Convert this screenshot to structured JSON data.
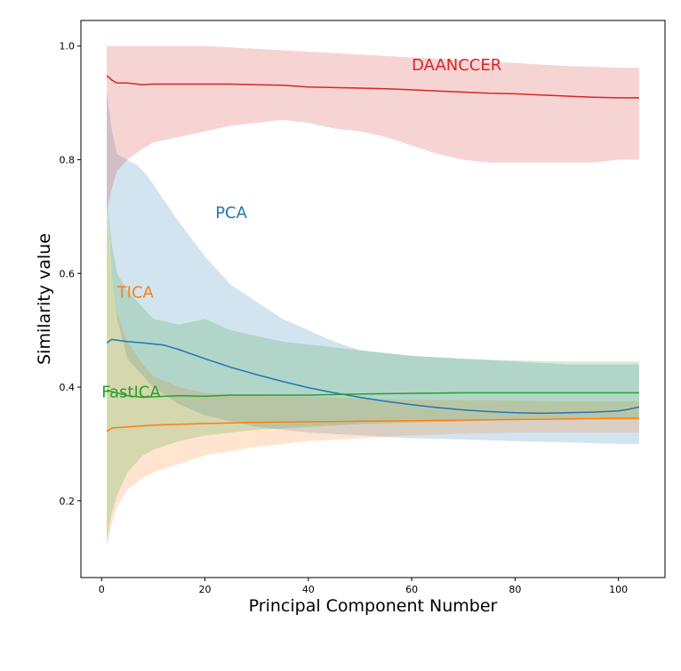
{
  "chart_data": {
    "type": "line",
    "title": "",
    "xlabel": "Principal Component Number",
    "ylabel": "Similarity value",
    "xlim": [
      -4,
      109
    ],
    "ylim": [
      0.065,
      1.045
    ],
    "xticks": [
      0,
      20,
      40,
      60,
      80,
      100
    ],
    "yticks": [
      0.2,
      0.4,
      0.6,
      0.8,
      1.0
    ],
    "xtick_labels": [
      "0",
      "20",
      "40",
      "60",
      "80",
      "100"
    ],
    "ytick_labels": [
      "0.2",
      "0.4",
      "0.6",
      "0.8",
      "1.0"
    ],
    "grid": false,
    "legend": "none (inline series labels)",
    "series": [
      {
        "name": "PCA",
        "color": "#1f77b4",
        "label_at": [
          22,
          0.705
        ],
        "points": [
          [
            1,
            0.478
          ],
          [
            2,
            0.484
          ],
          [
            5,
            0.48
          ],
          [
            8,
            0.478
          ],
          [
            10,
            0.476
          ],
          [
            12,
            0.474
          ],
          [
            15,
            0.466
          ],
          [
            20,
            0.45
          ],
          [
            25,
            0.435
          ],
          [
            30,
            0.422
          ],
          [
            35,
            0.41
          ],
          [
            40,
            0.399
          ],
          [
            45,
            0.39
          ],
          [
            50,
            0.382
          ],
          [
            55,
            0.375
          ],
          [
            60,
            0.369
          ],
          [
            65,
            0.364
          ],
          [
            70,
            0.36
          ],
          [
            75,
            0.357
          ],
          [
            80,
            0.355
          ],
          [
            85,
            0.354
          ],
          [
            90,
            0.355
          ],
          [
            95,
            0.356
          ],
          [
            100,
            0.358
          ],
          [
            102,
            0.361
          ],
          [
            104,
            0.365
          ]
        ],
        "upper": [
          [
            1,
            0.92
          ],
          [
            2,
            0.85
          ],
          [
            3,
            0.81
          ],
          [
            5,
            0.8
          ],
          [
            7,
            0.79
          ],
          [
            9,
            0.77
          ],
          [
            12,
            0.73
          ],
          [
            15,
            0.69
          ],
          [
            20,
            0.63
          ],
          [
            25,
            0.58
          ],
          [
            30,
            0.55
          ],
          [
            35,
            0.52
          ],
          [
            40,
            0.5
          ],
          [
            45,
            0.48
          ],
          [
            50,
            0.465
          ],
          [
            60,
            0.455
          ],
          [
            70,
            0.45
          ],
          [
            80,
            0.445
          ],
          [
            90,
            0.44
          ],
          [
            100,
            0.44
          ],
          [
            104,
            0.44
          ]
        ],
        "lower": [
          [
            1,
            0.72
          ],
          [
            2,
            0.6
          ],
          [
            3,
            0.52
          ],
          [
            5,
            0.45
          ],
          [
            10,
            0.4
          ],
          [
            15,
            0.37
          ],
          [
            20,
            0.35
          ],
          [
            30,
            0.33
          ],
          [
            40,
            0.32
          ],
          [
            50,
            0.315
          ],
          [
            60,
            0.31
          ],
          [
            70,
            0.308
          ],
          [
            80,
            0.305
          ],
          [
            90,
            0.303
          ],
          [
            100,
            0.3
          ],
          [
            104,
            0.3
          ]
        ]
      },
      {
        "name": "TICA",
        "color": "#ff7f0e",
        "label_at": [
          3,
          0.565
        ],
        "points": [
          [
            1,
            0.322
          ],
          [
            2,
            0.328
          ],
          [
            5,
            0.33
          ],
          [
            10,
            0.333
          ],
          [
            20,
            0.336
          ],
          [
            30,
            0.338
          ],
          [
            40,
            0.339
          ],
          [
            50,
            0.34
          ],
          [
            60,
            0.341
          ],
          [
            70,
            0.342
          ],
          [
            80,
            0.343
          ],
          [
            90,
            0.344
          ],
          [
            100,
            0.345
          ],
          [
            104,
            0.345
          ]
        ],
        "upper": [
          [
            1,
            0.7
          ],
          [
            2,
            0.6
          ],
          [
            3,
            0.53
          ],
          [
            5,
            0.48
          ],
          [
            8,
            0.44
          ],
          [
            10,
            0.42
          ],
          [
            15,
            0.4
          ],
          [
            20,
            0.39
          ],
          [
            30,
            0.385
          ],
          [
            40,
            0.383
          ],
          [
            50,
            0.38
          ],
          [
            60,
            0.378
          ],
          [
            70,
            0.377
          ],
          [
            80,
            0.376
          ],
          [
            90,
            0.375
          ],
          [
            100,
            0.375
          ],
          [
            104,
            0.375
          ]
        ],
        "lower": [
          [
            1,
            0.12
          ],
          [
            2,
            0.16
          ],
          [
            3,
            0.19
          ],
          [
            5,
            0.22
          ],
          [
            8,
            0.24
          ],
          [
            10,
            0.25
          ],
          [
            15,
            0.265
          ],
          [
            20,
            0.28
          ],
          [
            30,
            0.295
          ],
          [
            40,
            0.305
          ],
          [
            50,
            0.31
          ],
          [
            60,
            0.315
          ],
          [
            70,
            0.318
          ],
          [
            80,
            0.32
          ],
          [
            90,
            0.32
          ],
          [
            100,
            0.32
          ],
          [
            104,
            0.32
          ]
        ]
      },
      {
        "name": "FastICA",
        "color": "#2ca02c",
        "label_at": [
          0,
          0.39
        ],
        "points": [
          [
            1,
            0.395
          ],
          [
            2,
            0.392
          ],
          [
            5,
            0.385
          ],
          [
            8,
            0.382
          ],
          [
            10,
            0.383
          ],
          [
            15,
            0.385
          ],
          [
            20,
            0.384
          ],
          [
            25,
            0.386
          ],
          [
            30,
            0.386
          ],
          [
            40,
            0.386
          ],
          [
            50,
            0.388
          ],
          [
            60,
            0.389
          ],
          [
            70,
            0.39
          ],
          [
            80,
            0.39
          ],
          [
            90,
            0.39
          ],
          [
            100,
            0.39
          ],
          [
            104,
            0.39
          ]
        ],
        "upper": [
          [
            1,
            0.73
          ],
          [
            2,
            0.65
          ],
          [
            3,
            0.6
          ],
          [
            5,
            0.57
          ],
          [
            8,
            0.54
          ],
          [
            10,
            0.52
          ],
          [
            15,
            0.51
          ],
          [
            20,
            0.52
          ],
          [
            25,
            0.5
          ],
          [
            30,
            0.49
          ],
          [
            35,
            0.48
          ],
          [
            40,
            0.475
          ],
          [
            45,
            0.47
          ],
          [
            50,
            0.465
          ],
          [
            55,
            0.46
          ],
          [
            60,
            0.455
          ],
          [
            70,
            0.45
          ],
          [
            80,
            0.447
          ],
          [
            90,
            0.445
          ],
          [
            100,
            0.445
          ],
          [
            104,
            0.445
          ]
        ],
        "lower": [
          [
            1,
            0.13
          ],
          [
            2,
            0.18
          ],
          [
            3,
            0.21
          ],
          [
            5,
            0.25
          ],
          [
            8,
            0.28
          ],
          [
            10,
            0.29
          ],
          [
            15,
            0.305
          ],
          [
            20,
            0.315
          ],
          [
            30,
            0.325
          ],
          [
            40,
            0.33
          ],
          [
            50,
            0.335
          ],
          [
            60,
            0.338
          ],
          [
            70,
            0.34
          ],
          [
            80,
            0.342
          ],
          [
            90,
            0.343
          ],
          [
            100,
            0.345
          ],
          [
            104,
            0.345
          ]
        ]
      },
      {
        "name": "DAANCCER",
        "color": "#d62728",
        "label_at": [
          60,
          0.965
        ],
        "points": [
          [
            1,
            0.948
          ],
          [
            2,
            0.94
          ],
          [
            3,
            0.935
          ],
          [
            5,
            0.935
          ],
          [
            8,
            0.932
          ],
          [
            10,
            0.933
          ],
          [
            15,
            0.933
          ],
          [
            20,
            0.933
          ],
          [
            25,
            0.933
          ],
          [
            30,
            0.932
          ],
          [
            35,
            0.931
          ],
          [
            40,
            0.928
          ],
          [
            45,
            0.927
          ],
          [
            50,
            0.926
          ],
          [
            55,
            0.925
          ],
          [
            60,
            0.923
          ],
          [
            65,
            0.921
          ],
          [
            70,
            0.919
          ],
          [
            75,
            0.917
          ],
          [
            80,
            0.916
          ],
          [
            85,
            0.914
          ],
          [
            90,
            0.912
          ],
          [
            95,
            0.91
          ],
          [
            100,
            0.909
          ],
          [
            104,
            0.909
          ]
        ],
        "upper": [
          [
            1,
            1.0
          ],
          [
            10,
            1.0
          ],
          [
            20,
            1.0
          ],
          [
            30,
            0.995
          ],
          [
            40,
            0.99
          ],
          [
            50,
            0.985
          ],
          [
            60,
            0.98
          ],
          [
            70,
            0.975
          ],
          [
            80,
            0.97
          ],
          [
            90,
            0.965
          ],
          [
            100,
            0.962
          ],
          [
            104,
            0.962
          ]
        ],
        "lower": [
          [
            1,
            0.71
          ],
          [
            2,
            0.75
          ],
          [
            3,
            0.78
          ],
          [
            5,
            0.8
          ],
          [
            8,
            0.82
          ],
          [
            10,
            0.83
          ],
          [
            15,
            0.84
          ],
          [
            20,
            0.85
          ],
          [
            25,
            0.86
          ],
          [
            30,
            0.865
          ],
          [
            35,
            0.87
          ],
          [
            40,
            0.865
          ],
          [
            45,
            0.855
          ],
          [
            50,
            0.85
          ],
          [
            55,
            0.84
          ],
          [
            60,
            0.825
          ],
          [
            65,
            0.81
          ],
          [
            70,
            0.8
          ],
          [
            75,
            0.795
          ],
          [
            80,
            0.795
          ],
          [
            85,
            0.795
          ],
          [
            90,
            0.795
          ],
          [
            95,
            0.795
          ],
          [
            100,
            0.8
          ],
          [
            104,
            0.8
          ]
        ]
      }
    ]
  }
}
